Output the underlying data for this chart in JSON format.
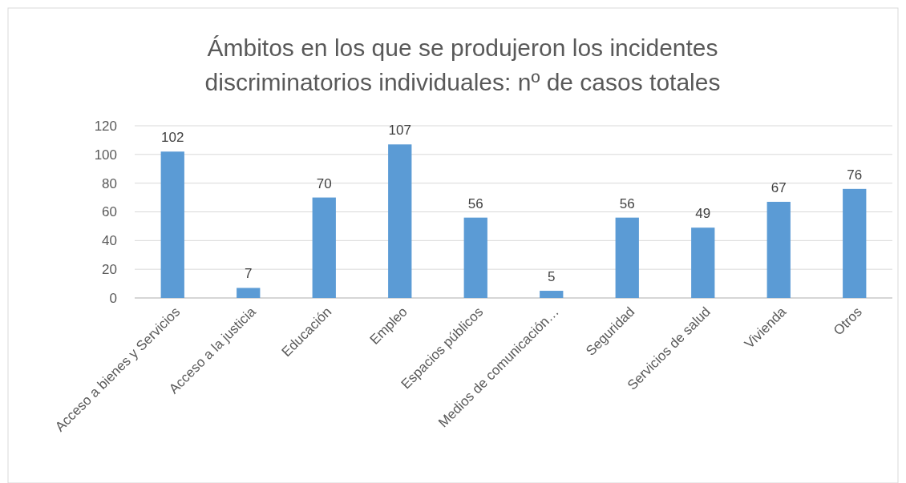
{
  "chart_data": {
    "type": "bar",
    "title": "Ámbitos en los que se produjeron los incidentes discriminatorios individuales: nº de casos totales",
    "categories": [
      "Acceso a bienes y Servicios",
      "Acceso a la justicia",
      "Educación",
      "Empleo",
      "Espacios públicos",
      "Medios de comunicación…",
      "Seguridad",
      "Servicios de salud",
      "Vivienda",
      "Otros"
    ],
    "values": [
      102,
      7,
      70,
      107,
      56,
      5,
      56,
      49,
      67,
      76
    ],
    "color": "#5b9bd5",
    "ylim": [
      0,
      120
    ],
    "yticks": [
      0,
      20,
      40,
      60,
      80,
      100,
      120
    ],
    "grid": "y",
    "data_labels": true
  }
}
